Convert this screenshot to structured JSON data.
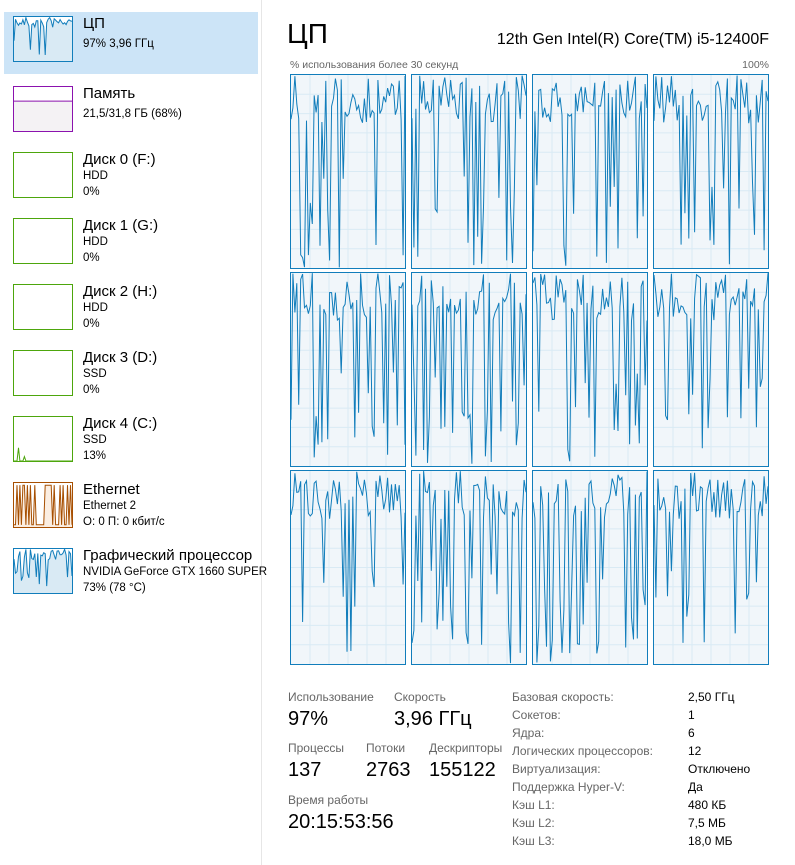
{
  "colors": {
    "cpu": "#117dbb",
    "memory": "#8b12ae",
    "disk": "#4da60c",
    "ethernet": "#a74f01",
    "selected": "#cce4f7"
  },
  "sidebar": {
    "items": [
      {
        "title": "ЦП",
        "line1": "97%  3,96 ГГц",
        "kind": "cpu"
      },
      {
        "title": "Память",
        "line1": "21,5/31,8 ГБ (68%)",
        "kind": "memory",
        "usage": 0.68
      },
      {
        "title": "Диск 0 (F:)",
        "line1": "HDD",
        "line2": "0%",
        "kind": "disk"
      },
      {
        "title": "Диск 1 (G:)",
        "line1": "HDD",
        "line2": "0%",
        "kind": "disk"
      },
      {
        "title": "Диск 2 (H:)",
        "line1": "HDD",
        "line2": "0%",
        "kind": "disk"
      },
      {
        "title": "Диск 3 (D:)",
        "line1": "SSD",
        "line2": "0%",
        "kind": "disk"
      },
      {
        "title": "Диск 4 (C:)",
        "line1": "SSD",
        "line2": "13%",
        "kind": "disk"
      },
      {
        "title": "Ethernet",
        "line1": "Ethernet 2",
        "line2": "О: 0 П: 0 кбит/с",
        "kind": "ethernet"
      },
      {
        "title": "Графический процессор",
        "line1": "NVIDIA GeForce GTX 1660 SUPER",
        "line2": "73% (78 °C)",
        "kind": "gpu"
      }
    ]
  },
  "header": {
    "title": "ЦП",
    "model": "12th Gen Intel(R) Core(TM) i5-12400F",
    "subtitle": "% использования более 30 секунд",
    "max": "100%"
  },
  "logical_processors": 12,
  "stats": {
    "usage_label": "Использование",
    "usage": "97%",
    "speed_label": "Скорость",
    "speed": "3,96 ГГц",
    "proc_label": "Процессы",
    "proc": "137",
    "threads_label": "Потоки",
    "threads": "2763",
    "handles_label": "Дескрипторы",
    "handles": "155122",
    "uptime_label": "Время работы",
    "uptime": "20:15:53:56"
  },
  "specs": [
    {
      "k": "Базовая скорость:",
      "v": "2,50 ГГц"
    },
    {
      "k": "Сокетов:",
      "v": "1"
    },
    {
      "k": "Ядра:",
      "v": "6"
    },
    {
      "k": "Логических процессоров:",
      "v": "12"
    },
    {
      "k": "Виртуализация:",
      "v": "Отключено"
    },
    {
      "k": "Поддержка Hyper-V:",
      "v": "Да"
    },
    {
      "k": "Кэш L1:",
      "v": "480 КБ"
    },
    {
      "k": "Кэш L2:",
      "v": "7,5 МБ"
    },
    {
      "k": "Кэш L3:",
      "v": "18,0 МБ"
    }
  ]
}
